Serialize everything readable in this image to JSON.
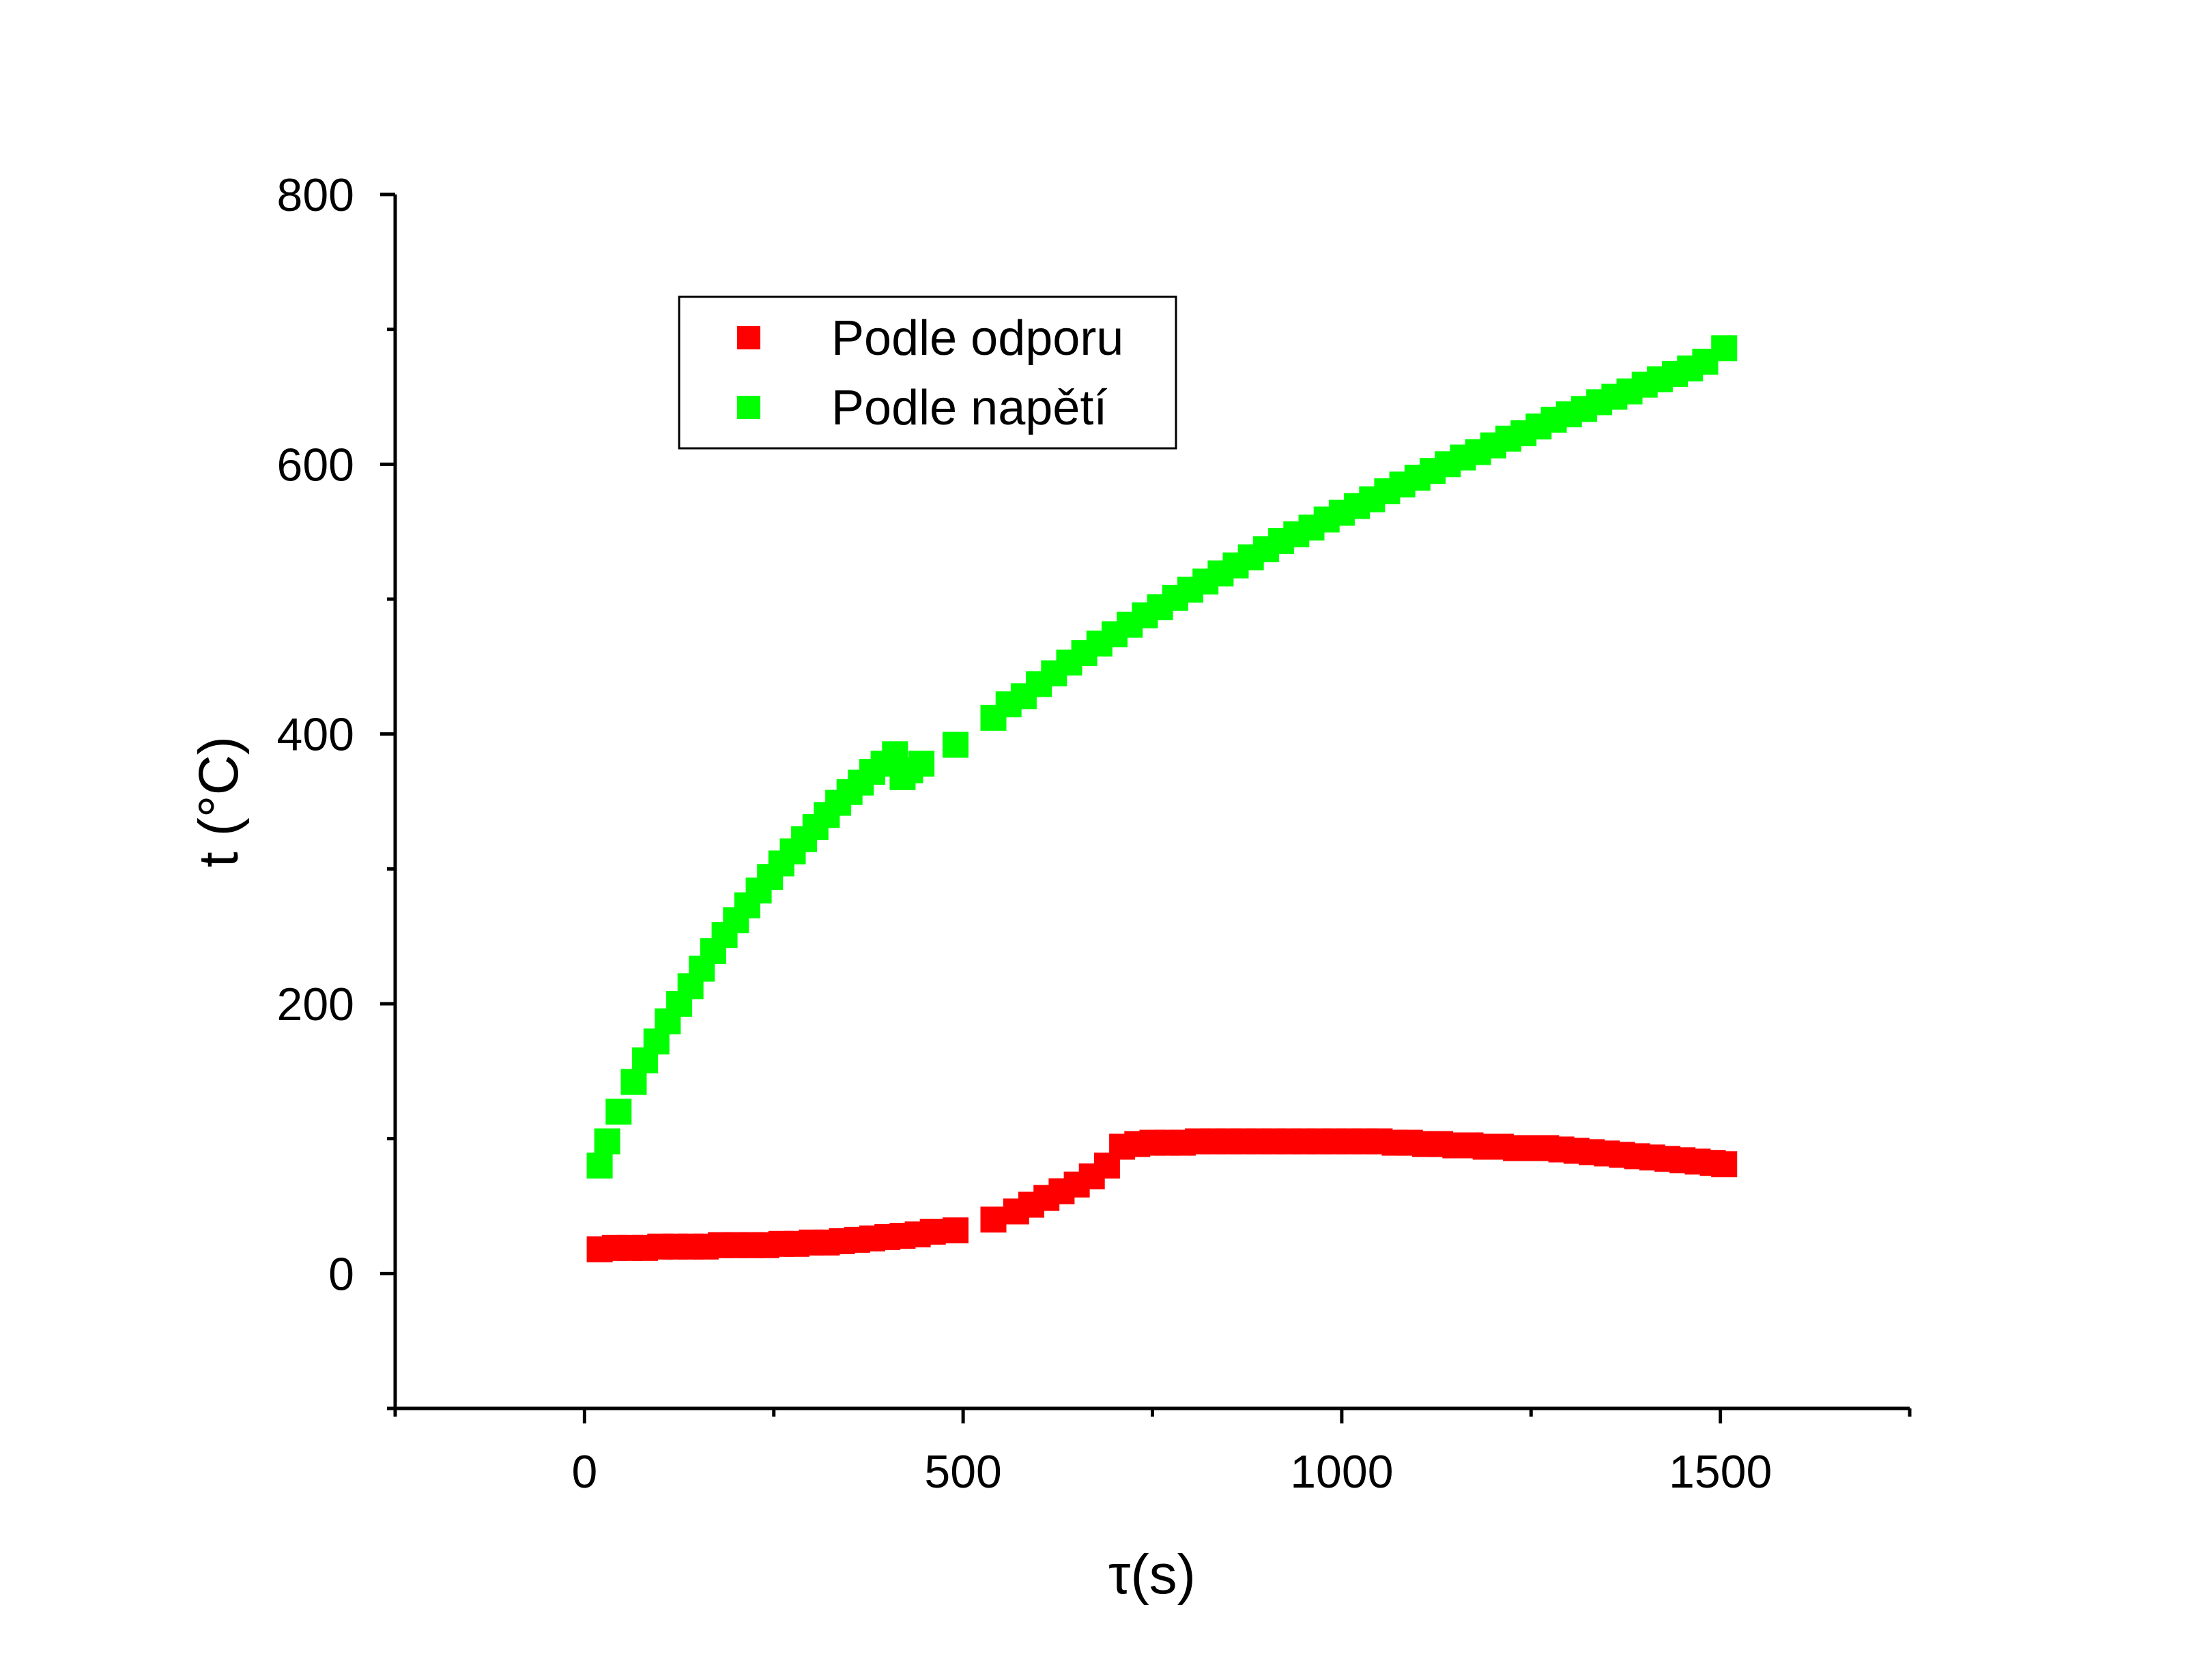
{
  "chart_data": {
    "type": "scatter",
    "title": "",
    "xlabel": "τ(s)",
    "ylabel": "t (°C)",
    "xlim": [
      -250,
      1750
    ],
    "ylim": [
      -100,
      800
    ],
    "x_ticks": [
      0,
      500,
      1000,
      1500
    ],
    "y_ticks": [
      0,
      200,
      400,
      600,
      800
    ],
    "grid": false,
    "legend_position": "top-left",
    "series": [
      {
        "name": "Podle odporu",
        "color": "#ff0000",
        "marker": "square",
        "points": [
          [
            20,
            18
          ],
          [
            40,
            19
          ],
          [
            60,
            19
          ],
          [
            80,
            19
          ],
          [
            100,
            20
          ],
          [
            120,
            20
          ],
          [
            140,
            20
          ],
          [
            160,
            20
          ],
          [
            180,
            21
          ],
          [
            200,
            21
          ],
          [
            220,
            21
          ],
          [
            240,
            21
          ],
          [
            260,
            22
          ],
          [
            280,
            22
          ],
          [
            300,
            23
          ],
          [
            320,
            23
          ],
          [
            340,
            24
          ],
          [
            360,
            25
          ],
          [
            380,
            26
          ],
          [
            400,
            27
          ],
          [
            420,
            28
          ],
          [
            440,
            29
          ],
          [
            460,
            31
          ],
          [
            490,
            32
          ],
          [
            540,
            40
          ],
          [
            570,
            46
          ],
          [
            590,
            51
          ],
          [
            610,
            56
          ],
          [
            630,
            61
          ],
          [
            650,
            66
          ],
          [
            670,
            72
          ],
          [
            690,
            80
          ],
          [
            710,
            94
          ],
          [
            730,
            96
          ],
          [
            750,
            97
          ],
          [
            770,
            97
          ],
          [
            790,
            97
          ],
          [
            810,
            98
          ],
          [
            830,
            98
          ],
          [
            850,
            98
          ],
          [
            870,
            98
          ],
          [
            890,
            98
          ],
          [
            910,
            98
          ],
          [
            930,
            98
          ],
          [
            950,
            98
          ],
          [
            970,
            98
          ],
          [
            990,
            98
          ],
          [
            1010,
            98
          ],
          [
            1030,
            98
          ],
          [
            1050,
            98
          ],
          [
            1070,
            97
          ],
          [
            1090,
            97
          ],
          [
            1110,
            96
          ],
          [
            1130,
            96
          ],
          [
            1150,
            95
          ],
          [
            1170,
            95
          ],
          [
            1190,
            94
          ],
          [
            1210,
            94
          ],
          [
            1230,
            93
          ],
          [
            1250,
            93
          ],
          [
            1270,
            93
          ],
          [
            1290,
            92
          ],
          [
            1310,
            91
          ],
          [
            1330,
            90
          ],
          [
            1350,
            89
          ],
          [
            1370,
            88
          ],
          [
            1390,
            87
          ],
          [
            1410,
            86
          ],
          [
            1430,
            85
          ],
          [
            1450,
            84
          ],
          [
            1470,
            83
          ],
          [
            1490,
            82
          ],
          [
            1505,
            81
          ]
        ]
      },
      {
        "name": "Podle napětí",
        "color": "#00ff00",
        "marker": "square",
        "points": [
          [
            20,
            80
          ],
          [
            30,
            98
          ],
          [
            45,
            120
          ],
          [
            65,
            142
          ],
          [
            80,
            158
          ],
          [
            95,
            172
          ],
          [
            110,
            187
          ],
          [
            125,
            200
          ],
          [
            140,
            213
          ],
          [
            155,
            226
          ],
          [
            170,
            239
          ],
          [
            185,
            251
          ],
          [
            200,
            262
          ],
          [
            215,
            273
          ],
          [
            230,
            284
          ],
          [
            245,
            294
          ],
          [
            260,
            304
          ],
          [
            275,
            313
          ],
          [
            290,
            322
          ],
          [
            305,
            331
          ],
          [
            320,
            340
          ],
          [
            335,
            349
          ],
          [
            350,
            357
          ],
          [
            365,
            364
          ],
          [
            380,
            372
          ],
          [
            395,
            378
          ],
          [
            410,
            385
          ],
          [
            420,
            368
          ],
          [
            430,
            373
          ],
          [
            445,
            378
          ],
          [
            490,
            392
          ],
          [
            540,
            412
          ],
          [
            560,
            422
          ],
          [
            580,
            428
          ],
          [
            600,
            437
          ],
          [
            620,
            445
          ],
          [
            640,
            453
          ],
          [
            660,
            460
          ],
          [
            680,
            467
          ],
          [
            700,
            474
          ],
          [
            720,
            481
          ],
          [
            740,
            488
          ],
          [
            760,
            494
          ],
          [
            780,
            501
          ],
          [
            800,
            507
          ],
          [
            820,
            513
          ],
          [
            840,
            519
          ],
          [
            860,
            525
          ],
          [
            880,
            531
          ],
          [
            900,
            537
          ],
          [
            920,
            543
          ],
          [
            940,
            548
          ],
          [
            960,
            553
          ],
          [
            980,
            559
          ],
          [
            1000,
            564
          ],
          [
            1020,
            569
          ],
          [
            1040,
            574
          ],
          [
            1060,
            580
          ],
          [
            1080,
            585
          ],
          [
            1100,
            590
          ],
          [
            1120,
            595
          ],
          [
            1140,
            600
          ],
          [
            1160,
            605
          ],
          [
            1180,
            609
          ],
          [
            1200,
            614
          ],
          [
            1220,
            619
          ],
          [
            1240,
            623
          ],
          [
            1260,
            628
          ],
          [
            1280,
            633
          ],
          [
            1300,
            637
          ],
          [
            1320,
            641
          ],
          [
            1340,
            646
          ],
          [
            1360,
            650
          ],
          [
            1380,
            654
          ],
          [
            1400,
            659
          ],
          [
            1420,
            663
          ],
          [
            1440,
            667
          ],
          [
            1460,
            671
          ],
          [
            1480,
            676
          ],
          [
            1505,
            686
          ]
        ]
      }
    ]
  }
}
